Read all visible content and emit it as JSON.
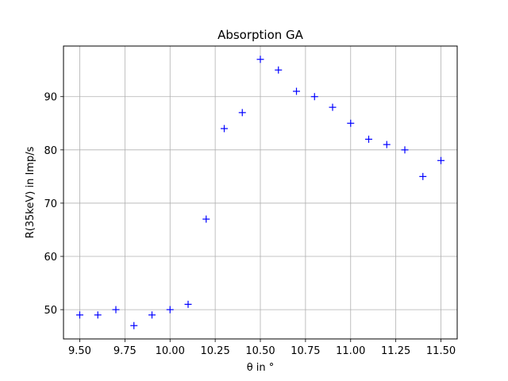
{
  "chart_data": {
    "type": "scatter",
    "title": "Absorption GA",
    "xlabel": "θ in °",
    "ylabel": "R(35keV) in Imp/s",
    "xlim": [
      9.41,
      11.59
    ],
    "ylim": [
      44.5,
      99.5
    ],
    "xticks": [
      9.5,
      9.75,
      10.0,
      10.25,
      10.5,
      10.75,
      11.0,
      11.25,
      11.5
    ],
    "xtick_labels": [
      "9.50",
      "9.75",
      "10.00",
      "10.25",
      "10.50",
      "10.75",
      "11.00",
      "11.25",
      "11.50"
    ],
    "yticks": [
      50,
      60,
      70,
      80,
      90
    ],
    "ytick_labels": [
      "50",
      "60",
      "70",
      "80",
      "90"
    ],
    "grid": true,
    "marker": "+",
    "color": "#0000ff",
    "x": [
      9.5,
      9.6,
      9.7,
      9.8,
      9.9,
      10.0,
      10.1,
      10.2,
      10.3,
      10.4,
      10.5,
      10.6,
      10.7,
      10.8,
      10.9,
      11.0,
      11.1,
      11.2,
      11.3,
      11.4,
      11.5
    ],
    "y": [
      49,
      49,
      50,
      47,
      49,
      50,
      51,
      67,
      84,
      87,
      97,
      95,
      91,
      90,
      88,
      85,
      82,
      81,
      80,
      75,
      78
    ]
  }
}
